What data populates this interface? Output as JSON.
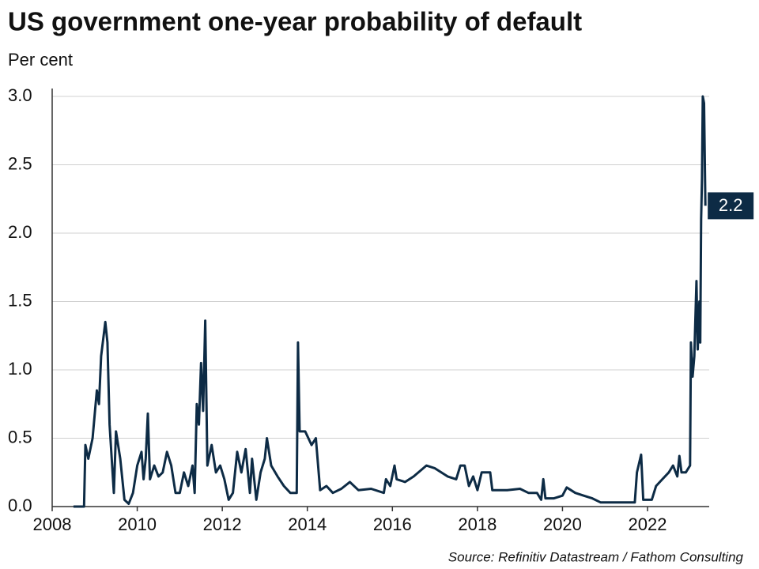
{
  "chart_data": {
    "type": "line",
    "title": "US government one-year probability of default",
    "y_label": "Per cent",
    "source": "Source: Refinitiv Datastream / Fathom Consulting",
    "xlim": [
      2008,
      2023.45
    ],
    "xticks": [
      2008,
      2010,
      2012,
      2014,
      2016,
      2018,
      2020,
      2022
    ],
    "ylim": [
      0,
      3
    ],
    "yticks": [
      {
        "value": 0,
        "label": "0.0"
      },
      {
        "value": 0.5,
        "label": "0.5"
      },
      {
        "value": 1,
        "label": "1.0"
      },
      {
        "value": 1.5,
        "label": "1.5"
      },
      {
        "value": 2,
        "label": "2.0"
      },
      {
        "value": 2.5,
        "label": "2.5"
      },
      {
        "value": 3,
        "label": "3.0"
      }
    ],
    "grid": true,
    "series": [
      {
        "color": "#0d2b45",
        "x": [
          2008.5,
          2008.75,
          2008.78,
          2008.85,
          2008.95,
          2009.05,
          2009.1,
          2009.15,
          2009.25,
          2009.3,
          2009.35,
          2009.45,
          2009.5,
          2009.6,
          2009.7,
          2009.8,
          2009.9,
          2010.0,
          2010.1,
          2010.15,
          2010.2,
          2010.25,
          2010.3,
          2010.4,
          2010.5,
          2010.6,
          2010.7,
          2010.8,
          2010.9,
          2011.0,
          2011.1,
          2011.2,
          2011.3,
          2011.35,
          2011.4,
          2011.45,
          2011.5,
          2011.55,
          2011.6,
          2011.65,
          2011.75,
          2011.85,
          2011.95,
          2012.05,
          2012.15,
          2012.25,
          2012.35,
          2012.45,
          2012.55,
          2012.65,
          2012.7,
          2012.8,
          2012.9,
          2013.0,
          2013.05,
          2013.15,
          2013.3,
          2013.45,
          2013.6,
          2013.75,
          2013.78,
          2013.82,
          2013.95,
          2014.1,
          2014.2,
          2014.3,
          2014.45,
          2014.6,
          2014.8,
          2015.0,
          2015.2,
          2015.5,
          2015.8,
          2015.85,
          2015.95,
          2016.05,
          2016.1,
          2016.3,
          2016.5,
          2016.8,
          2017.0,
          2017.3,
          2017.5,
          2017.6,
          2017.7,
          2017.8,
          2017.9,
          2018.0,
          2018.1,
          2018.3,
          2018.35,
          2018.7,
          2019.0,
          2019.2,
          2019.4,
          2019.5,
          2019.55,
          2019.6,
          2019.8,
          2020.0,
          2020.1,
          2020.3,
          2020.5,
          2020.7,
          2020.9,
          2021.3,
          2021.7,
          2021.75,
          2021.85,
          2021.9,
          2022.1,
          2022.2,
          2022.35,
          2022.5,
          2022.6,
          2022.7,
          2022.75,
          2022.8,
          2022.9,
          2023.0,
          2023.02,
          2023.06,
          2023.1,
          2023.15,
          2023.18,
          2023.22,
          2023.24,
          2023.26,
          2023.28,
          2023.3,
          2023.33,
          2023.36
        ],
        "values": [
          0,
          0,
          0.45,
          0.35,
          0.5,
          0.85,
          0.75,
          1.1,
          1.35,
          1.2,
          0.6,
          0.1,
          0.55,
          0.35,
          0.05,
          0.02,
          0.1,
          0.3,
          0.4,
          0.2,
          0.35,
          0.68,
          0.2,
          0.3,
          0.22,
          0.25,
          0.4,
          0.3,
          0.1,
          0.1,
          0.25,
          0.15,
          0.3,
          0.1,
          0.75,
          0.6,
          1.05,
          0.7,
          1.36,
          0.3,
          0.45,
          0.25,
          0.3,
          0.2,
          0.05,
          0.1,
          0.4,
          0.25,
          0.42,
          0.1,
          0.35,
          0.05,
          0.25,
          0.35,
          0.5,
          0.3,
          0.22,
          0.15,
          0.1,
          0.1,
          1.2,
          0.55,
          0.55,
          0.45,
          0.5,
          0.12,
          0.15,
          0.1,
          0.13,
          0.18,
          0.12,
          0.13,
          0.1,
          0.2,
          0.15,
          0.3,
          0.2,
          0.18,
          0.22,
          0.3,
          0.28,
          0.22,
          0.2,
          0.3,
          0.3,
          0.15,
          0.22,
          0.12,
          0.25,
          0.25,
          0.12,
          0.12,
          0.13,
          0.1,
          0.1,
          0.05,
          0.2,
          0.06,
          0.06,
          0.08,
          0.14,
          0.1,
          0.08,
          0.06,
          0.03,
          0.03,
          0.03,
          0.25,
          0.38,
          0.05,
          0.05,
          0.15,
          0.2,
          0.25,
          0.3,
          0.22,
          0.37,
          0.25,
          0.25,
          0.3,
          1.2,
          0.95,
          1.1,
          1.65,
          1.15,
          1.5,
          1.2,
          2.1,
          2.4,
          3.0,
          2.95,
          2.2
        ]
      }
    ],
    "annotations": [
      {
        "text": "2.2",
        "x": 2023.36,
        "y": 2.2
      }
    ]
  }
}
